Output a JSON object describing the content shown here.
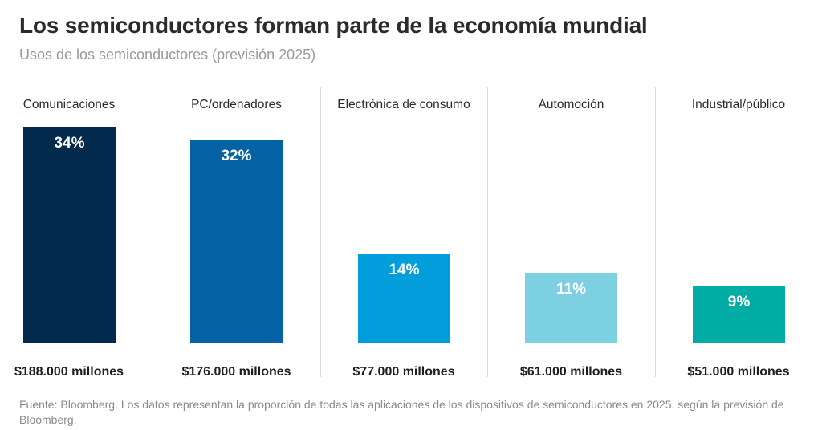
{
  "chart_data": {
    "type": "bar",
    "title": "Los semiconductores forman parte de la economía mundial",
    "subtitle": "Usos de los semiconductores (previsión 2025)",
    "xlabel": "",
    "ylabel": "",
    "ylim": [
      0,
      34
    ],
    "grid": false,
    "legend": "none",
    "categories": [
      "Comunicaciones",
      "PC/ordenadores",
      "Electrónica de consumo",
      "Automoción",
      "Industrial/público"
    ],
    "values": [
      34,
      32,
      14,
      11,
      9
    ],
    "value_labels": [
      "34%",
      "32%",
      "14%",
      "11%",
      "9%"
    ],
    "amounts": [
      "$188.000 millones",
      "$176.000 millones",
      "$77.000 millones",
      "$61.000 millones",
      "$51.000 millones"
    ],
    "colors": [
      "#032a4d",
      "#0563a5",
      "#029ddb",
      "#7dcfe2",
      "#00aca4"
    ]
  },
  "footnote": "Fuente: Bloomberg. Los datos representan la proporción de todas las aplicaciones de los dispositivos de semiconductores en 2025, según la previsión de Bloomberg."
}
